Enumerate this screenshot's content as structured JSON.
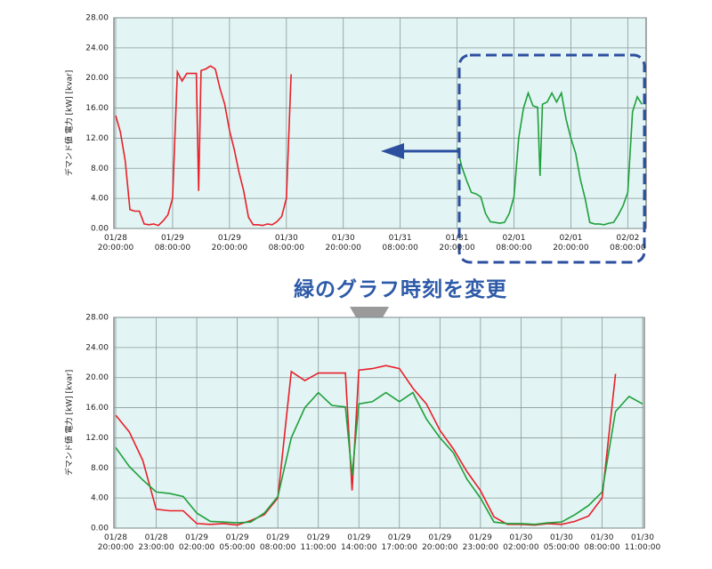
{
  "annotation": "緑のグラフ時刻を変更",
  "chart_data": [
    {
      "type": "line",
      "y_label": "デマンド値 電力 [kW] [kvar]",
      "xlim": [
        "01/28 20:00:00",
        "02/02 11:30:00"
      ],
      "xticks": [
        "01/28 20:00:00",
        "01/29 08:00:00",
        "01/29 20:00:00",
        "01/30 08:00:00",
        "01/30 20:00:00",
        "01/31 08:00:00",
        "01/31 20:00:00",
        "02/01 08:00:00",
        "02/01 20:00:00",
        "02/02 08:00:00"
      ],
      "ylim": [
        0,
        28
      ],
      "yticks": [
        {
          "value": 0,
          "label": "0.00"
        },
        {
          "value": 4,
          "label": "4.00"
        },
        {
          "value": 8,
          "label": "8.00"
        },
        {
          "value": 12,
          "label": "12.00"
        },
        {
          "value": 16,
          "label": "16.00"
        },
        {
          "value": 20,
          "label": "20.00"
        },
        {
          "value": 24,
          "label": "24.00"
        },
        {
          "value": 28,
          "label": "28.00"
        }
      ],
      "grid": true,
      "series": [
        {
          "color": "#e8202a",
          "x": [
            "01/28 20:00",
            "01/28 21:00",
            "01/28 22:00",
            "01/28 23:00",
            "01/29 00:00",
            "01/29 01:00",
            "01/29 02:00",
            "01/29 03:00",
            "01/29 04:00",
            "01/29 05:00",
            "01/29 06:00",
            "01/29 07:00",
            "01/29 08:00",
            "01/29 09:00",
            "01/29 10:00",
            "01/29 11:00",
            "01/29 12:00",
            "01/29 13:00",
            "01/29 13:30",
            "01/29 14:00",
            "01/29 15:00",
            "01/29 16:00",
            "01/29 17:00",
            "01/29 18:00",
            "01/29 19:00",
            "01/29 20:00",
            "01/29 21:00",
            "01/29 22:00",
            "01/29 23:00",
            "01/30 00:00",
            "01/30 01:00",
            "01/30 02:00",
            "01/30 03:00",
            "01/30 04:00",
            "01/30 05:00",
            "01/30 06:00",
            "01/30 07:00",
            "01/30 08:00",
            "01/30 09:00"
          ],
          "values": [
            15.0,
            12.8,
            9.0,
            2.5,
            2.3,
            2.3,
            0.6,
            0.5,
            0.6,
            0.4,
            1.0,
            1.8,
            4.0,
            20.8,
            19.6,
            20.6,
            20.6,
            20.6,
            5.0,
            21.0,
            21.2,
            21.6,
            21.2,
            18.6,
            16.5,
            13.0,
            10.5,
            7.5,
            5.0,
            1.5,
            0.5,
            0.5,
            0.4,
            0.6,
            0.5,
            0.9,
            1.6,
            4.0,
            20.5
          ]
        },
        {
          "color": "#1fa03c",
          "x": [
            "01/31 20:00",
            "01/31 21:00",
            "01/31 22:00",
            "01/31 23:00",
            "02/01 00:00",
            "02/01 01:00",
            "02/01 02:00",
            "02/01 03:00",
            "02/01 04:00",
            "02/01 05:00",
            "02/01 06:00",
            "02/01 07:00",
            "02/01 08:00",
            "02/01 09:00",
            "02/01 10:00",
            "02/01 11:00",
            "02/01 12:00",
            "02/01 13:00",
            "02/01 13:30",
            "02/01 14:00",
            "02/01 15:00",
            "02/01 16:00",
            "02/01 17:00",
            "02/01 18:00",
            "02/01 19:00",
            "02/01 20:00",
            "02/01 21:00",
            "02/01 22:00",
            "02/01 23:00",
            "02/02 00:00",
            "02/02 01:00",
            "02/02 02:00",
            "02/02 03:00",
            "02/02 04:00",
            "02/02 05:00",
            "02/02 06:00",
            "02/02 07:00",
            "02/02 08:00",
            "02/02 09:00",
            "02/02 10:00",
            "02/02 11:00"
          ],
          "values": [
            10.7,
            8.2,
            6.4,
            4.8,
            4.6,
            4.2,
            2.0,
            0.9,
            0.8,
            0.7,
            0.8,
            2.0,
            4.2,
            12.0,
            16.0,
            18.0,
            16.3,
            16.1,
            7.0,
            16.5,
            16.8,
            18.0,
            16.8,
            18.0,
            14.5,
            12.0,
            10.0,
            6.5,
            4.0,
            0.8,
            0.6,
            0.6,
            0.5,
            0.7,
            0.8,
            1.8,
            3.0,
            4.8,
            15.5,
            17.5,
            16.5
          ]
        }
      ]
    },
    {
      "type": "line",
      "y_label": "デマンド値 電力 [kW] [kvar]",
      "xlim": [
        "01/28 20:00:00",
        "01/30 11:00:00"
      ],
      "xticks": [
        "01/28 20:00:00",
        "01/28 23:00:00",
        "01/29 02:00:00",
        "01/29 05:00:00",
        "01/29 08:00:00",
        "01/29 11:00:00",
        "01/29 14:00:00",
        "01/29 17:00:00",
        "01/29 20:00:00",
        "01/29 23:00:00",
        "01/30 02:00:00",
        "01/30 05:00:00",
        "01/30 08:00:00",
        "01/30 11:00:00"
      ],
      "ylim": [
        0,
        28
      ],
      "yticks": [
        {
          "value": 0,
          "label": "0.00"
        },
        {
          "value": 4,
          "label": "4.00"
        },
        {
          "value": 8,
          "label": "8.00"
        },
        {
          "value": 12,
          "label": "12.00"
        },
        {
          "value": 16,
          "label": "16.00"
        },
        {
          "value": 20,
          "label": "20.00"
        },
        {
          "value": 24,
          "label": "24.00"
        },
        {
          "value": 28,
          "label": "28.00"
        }
      ],
      "grid": true,
      "series": [
        {
          "color": "#e8202a",
          "x": [
            "01/28 20:00",
            "01/28 21:00",
            "01/28 22:00",
            "01/28 23:00",
            "01/29 00:00",
            "01/29 01:00",
            "01/29 02:00",
            "01/29 03:00",
            "01/29 04:00",
            "01/29 05:00",
            "01/29 06:00",
            "01/29 07:00",
            "01/29 08:00",
            "01/29 09:00",
            "01/29 10:00",
            "01/29 11:00",
            "01/29 12:00",
            "01/29 13:00",
            "01/29 13:30",
            "01/29 14:00",
            "01/29 15:00",
            "01/29 16:00",
            "01/29 17:00",
            "01/29 18:00",
            "01/29 19:00",
            "01/29 20:00",
            "01/29 21:00",
            "01/29 22:00",
            "01/29 23:00",
            "01/30 00:00",
            "01/30 01:00",
            "01/30 02:00",
            "01/30 03:00",
            "01/30 04:00",
            "01/30 05:00",
            "01/30 06:00",
            "01/30 07:00",
            "01/30 08:00",
            "01/30 09:00"
          ],
          "values": [
            15.0,
            12.8,
            9.0,
            2.5,
            2.3,
            2.3,
            0.6,
            0.5,
            0.6,
            0.4,
            1.0,
            1.8,
            4.0,
            20.8,
            19.6,
            20.6,
            20.6,
            20.6,
            5.0,
            21.0,
            21.2,
            21.6,
            21.2,
            18.6,
            16.5,
            13.0,
            10.5,
            7.5,
            5.0,
            1.5,
            0.5,
            0.5,
            0.4,
            0.6,
            0.5,
            0.9,
            1.6,
            4.0,
            20.5
          ]
        },
        {
          "color": "#1fa03c",
          "x": [
            "01/28 20:00",
            "01/28 21:00",
            "01/28 22:00",
            "01/28 23:00",
            "01/29 00:00",
            "01/29 01:00",
            "01/29 02:00",
            "01/29 03:00",
            "01/29 04:00",
            "01/29 05:00",
            "01/29 06:00",
            "01/29 07:00",
            "01/29 08:00",
            "01/29 09:00",
            "01/29 10:00",
            "01/29 11:00",
            "01/29 12:00",
            "01/29 13:00",
            "01/29 13:30",
            "01/29 14:00",
            "01/29 15:00",
            "01/29 16:00",
            "01/29 17:00",
            "01/29 18:00",
            "01/29 19:00",
            "01/29 20:00",
            "01/29 21:00",
            "01/29 22:00",
            "01/29 23:00",
            "01/30 00:00",
            "01/30 01:00",
            "01/30 02:00",
            "01/30 03:00",
            "01/30 04:00",
            "01/30 05:00",
            "01/30 06:00",
            "01/30 07:00",
            "01/30 08:00",
            "01/30 09:00",
            "01/30 10:00",
            "01/30 11:00"
          ],
          "values": [
            10.7,
            8.2,
            6.4,
            4.8,
            4.6,
            4.2,
            2.0,
            0.9,
            0.8,
            0.7,
            0.8,
            2.0,
            4.2,
            12.0,
            16.0,
            18.0,
            16.3,
            16.1,
            7.0,
            16.5,
            16.8,
            18.0,
            16.8,
            18.0,
            14.5,
            12.0,
            10.0,
            6.5,
            4.0,
            0.8,
            0.6,
            0.6,
            0.5,
            0.7,
            0.8,
            1.8,
            3.0,
            4.8,
            15.5,
            17.5,
            16.5
          ]
        }
      ]
    }
  ]
}
